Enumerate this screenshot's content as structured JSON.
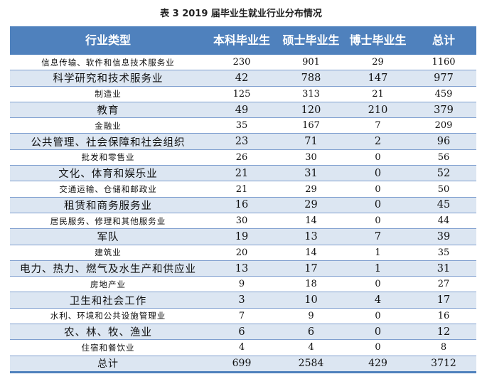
{
  "title": "表 3   2019 届毕业生就业行业分布情况",
  "headers": [
    "行业类型",
    "本科毕业生",
    "硕士毕业生",
    "博士毕业生",
    "总计"
  ],
  "rows": [
    [
      "信息传输、软件和信息技术服务业",
      "230",
      "901",
      "29",
      "1160"
    ],
    [
      "科学研究和技术服务业",
      "42",
      "788",
      "147",
      "977"
    ],
    [
      "制造业",
      "125",
      "313",
      "21",
      "459"
    ],
    [
      "教育",
      "49",
      "120",
      "210",
      "379"
    ],
    [
      "金融业",
      "35",
      "167",
      "7",
      "209"
    ],
    [
      "公共管理、社会保障和社会组织",
      "23",
      "71",
      "2",
      "96"
    ],
    [
      "批发和零售业",
      "26",
      "30",
      "0",
      "56"
    ],
    [
      "文化、体育和娱乐业",
      "21",
      "31",
      "0",
      "52"
    ],
    [
      "交通运输、仓储和邮政业",
      "21",
      "29",
      "0",
      "50"
    ],
    [
      "租赁和商务服务业",
      "16",
      "29",
      "0",
      "45"
    ],
    [
      "居民服务、修理和其他服务业",
      "30",
      "14",
      "0",
      "44"
    ],
    [
      "军队",
      "19",
      "13",
      "7",
      "39"
    ],
    [
      "建筑业",
      "20",
      "14",
      "1",
      "35"
    ],
    [
      "电力、热力、燃气及水生产和供应业",
      "13",
      "17",
      "1",
      "31"
    ],
    [
      "房地产业",
      "9",
      "18",
      "0",
      "27"
    ],
    [
      "卫生和社会工作",
      "3",
      "10",
      "4",
      "17"
    ],
    [
      "水利、环境和公共设施管理业",
      "7",
      "9",
      "0",
      "16"
    ],
    [
      "农、林、牧、渔业",
      "6",
      "6",
      "0",
      "12"
    ],
    [
      "住宿和餐饮业",
      "4",
      "4",
      "0",
      "8"
    ]
  ],
  "total": [
    "总计",
    "699",
    "2584",
    "429",
    "3712"
  ],
  "colors": {
    "header": "#4f81bd",
    "stripe": "#dce6f2"
  }
}
